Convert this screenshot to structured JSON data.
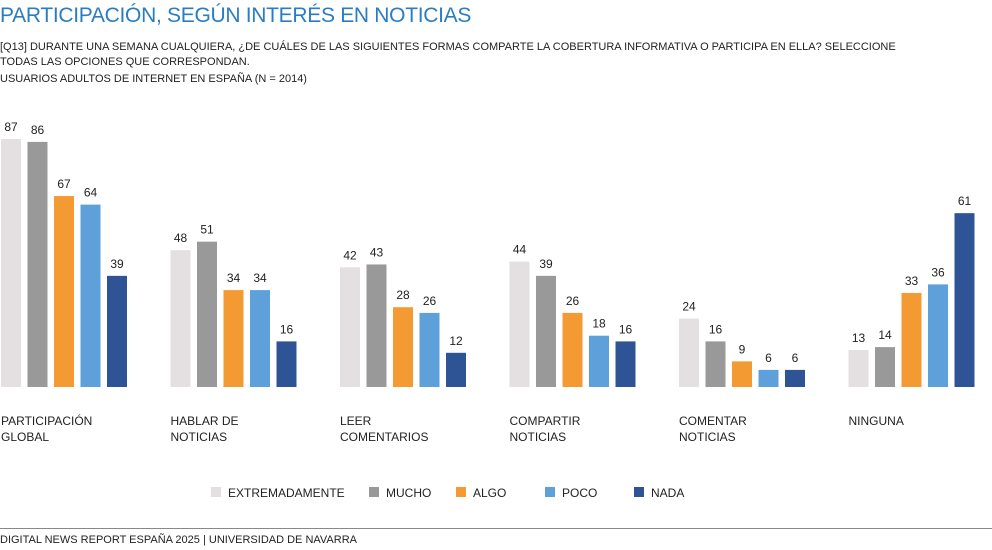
{
  "title": "PARTICIPACIÓN, SEGÚN INTERÉS EN NOTICIAS",
  "question": "[Q13] DURANTE UNA SEMANA CUALQUIERA, ¿DE CUÁLES DE LAS SIGUIENTES FORMAS COMPARTE LA COBERTURA INFORMATIVA O PARTICIPA EN ELLA? SELECCIONE TODAS LAS OPCIONES QUE CORRESPONDAN.",
  "base": "USUARIOS ADULTOS DE INTERNET EN ESPAÑA (N = 2014)",
  "footer": "DIGITAL NEWS REPORT ESPAÑA 2025 | UNIVERSIDAD DE NAVARRA",
  "chart_data": {
    "type": "bar",
    "categories": [
      [
        "PARTICIPACIÓN",
        "GLOBAL"
      ],
      [
        "HABLAR DE",
        "NOTICIAS"
      ],
      [
        "LEER",
        "COMENTARIOS"
      ],
      [
        "COMPARTIR",
        "NOTICIAS"
      ],
      [
        "COMENTAR",
        "NOTICIAS"
      ],
      [
        "NINGUNA"
      ]
    ],
    "series": [
      {
        "name": "EXTREMADAMENTE",
        "color": "#e4dfe1",
        "values": [
          87,
          48,
          42,
          44,
          24,
          13
        ]
      },
      {
        "name": "MUCHO",
        "color": "#999999",
        "values": [
          86,
          51,
          43,
          39,
          16,
          14
        ]
      },
      {
        "name": "ALGO",
        "color": "#f39a33",
        "values": [
          67,
          34,
          28,
          26,
          9,
          33
        ]
      },
      {
        "name": "POCO",
        "color": "#5ea1da",
        "values": [
          64,
          34,
          26,
          18,
          6,
          36
        ]
      },
      {
        "name": "NADA",
        "color": "#2e5496",
        "values": [
          39,
          16,
          12,
          16,
          6,
          61
        ]
      }
    ],
    "ylim": [
      0,
      90
    ],
    "grid": false,
    "legend_position": "bottom"
  }
}
